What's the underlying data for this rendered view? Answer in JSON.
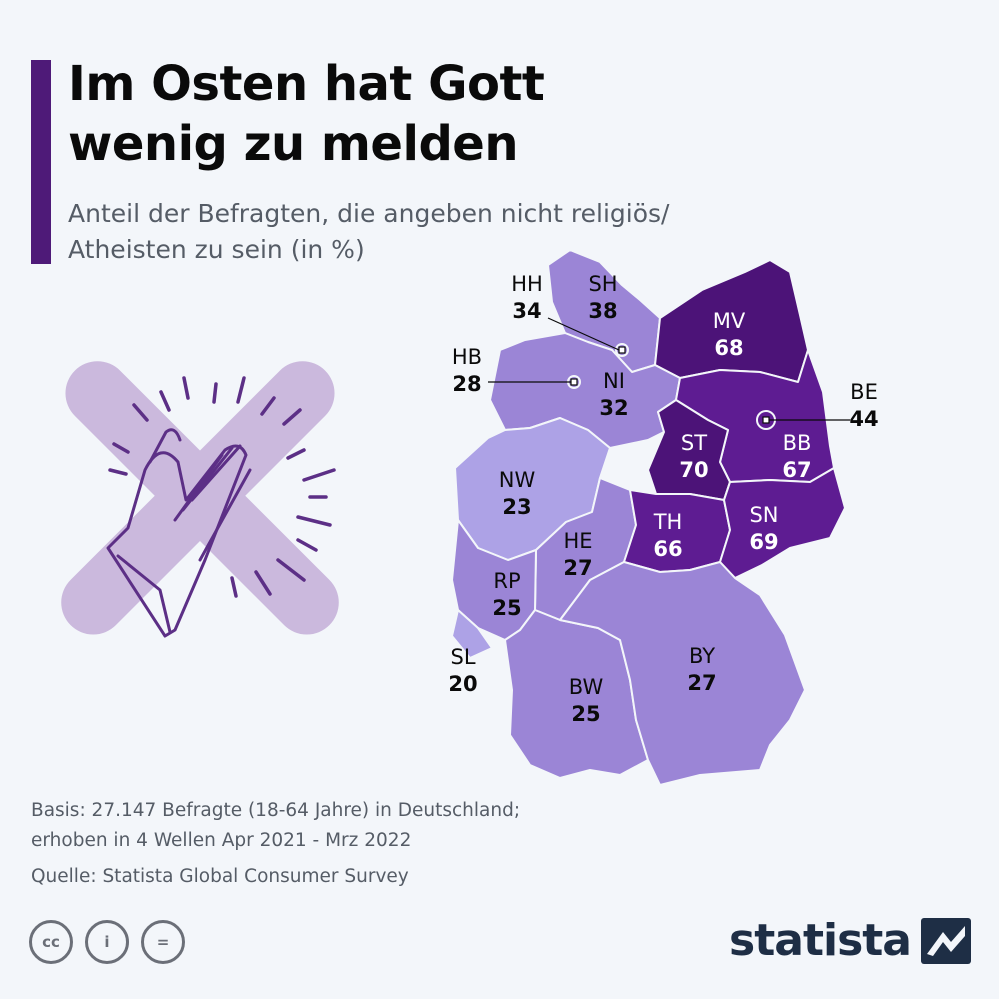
{
  "title": "Im Osten hat Gott wenig zu melden",
  "subtitle_lines": [
    "Anteil der Befragten, die angeben nicht religiös/",
    "Atheisten zu sein (in %)"
  ],
  "colors": {
    "accent": "#4e1a78",
    "scale_light": "#ada2e6",
    "scale_mid": "#9b85d6",
    "scale_dark": "#5e1c92",
    "scale_darkest": "#4c1378",
    "badge_bg": "#cbb9dd",
    "hands": "#5c2f86",
    "brand": "#1e2e45"
  },
  "chart_data": {
    "type": "map",
    "region": "Deutschland",
    "unit": "%",
    "values": [
      {
        "code": "SH",
        "value": 38
      },
      {
        "code": "HH",
        "value": 34
      },
      {
        "code": "MV",
        "value": 68
      },
      {
        "code": "HB",
        "value": 28
      },
      {
        "code": "NI",
        "value": 32
      },
      {
        "code": "BE",
        "value": 44
      },
      {
        "code": "BB",
        "value": 67
      },
      {
        "code": "ST",
        "value": 70
      },
      {
        "code": "NW",
        "value": 23
      },
      {
        "code": "SN",
        "value": 69
      },
      {
        "code": "TH",
        "value": 66
      },
      {
        "code": "HE",
        "value": 27
      },
      {
        "code": "RP",
        "value": 25
      },
      {
        "code": "SL",
        "value": 20
      },
      {
        "code": "BY",
        "value": 27
      },
      {
        "code": "BW",
        "value": 25
      }
    ]
  },
  "footer": {
    "basis_line1": "Basis: 27.147 Befragte (18-64 Jahre) in Deutschland;",
    "basis_line2": "erhoben in 4 Wellen Apr 2021 - Mrz 2022",
    "source": "Quelle: Statista Global Consumer Survey"
  },
  "license_icons": [
    "cc-icon",
    "person-icon",
    "equals-icon"
  ],
  "license_glyphs": [
    "cc",
    "i",
    "="
  ],
  "brand": "statista"
}
